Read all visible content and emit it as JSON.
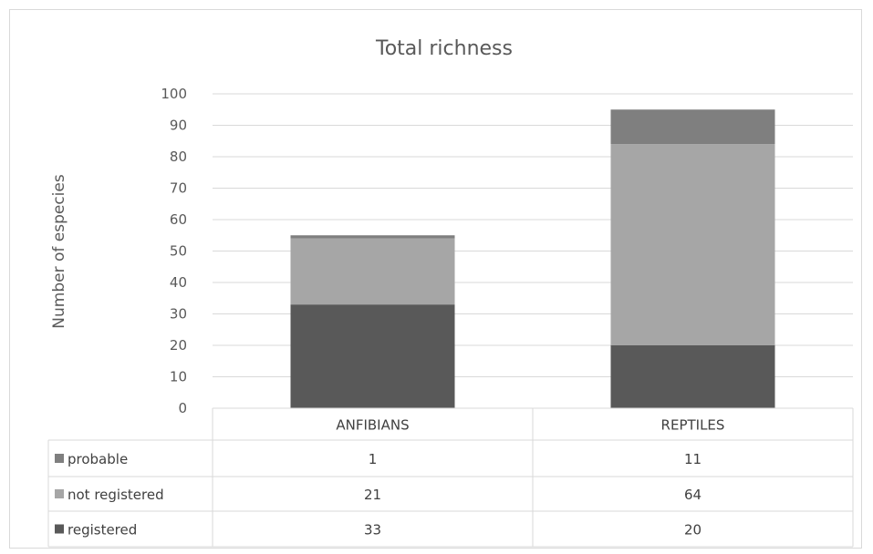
{
  "chart_data": {
    "type": "bar",
    "stacked": true,
    "title": "Total richness",
    "ylabel": "Number  of especies",
    "xlabel": "",
    "ylim": [
      0,
      100
    ],
    "yticks": [
      0,
      10,
      20,
      30,
      40,
      50,
      60,
      70,
      80,
      90,
      100
    ],
    "grid": true,
    "categories": [
      "ANFIBIANS",
      "REPTILES"
    ],
    "series": [
      {
        "name": "registered",
        "values": [
          33,
          20
        ],
        "color": "#595959"
      },
      {
        "name": " not registered",
        "values": [
          21,
          64
        ],
        "color": "#a6a6a6"
      },
      {
        "name": "probable",
        "values": [
          1,
          11
        ],
        "color": "#7f7f7f"
      }
    ],
    "data_table": true,
    "table_row_order": [
      "probable",
      " not registered",
      "registered"
    ]
  }
}
